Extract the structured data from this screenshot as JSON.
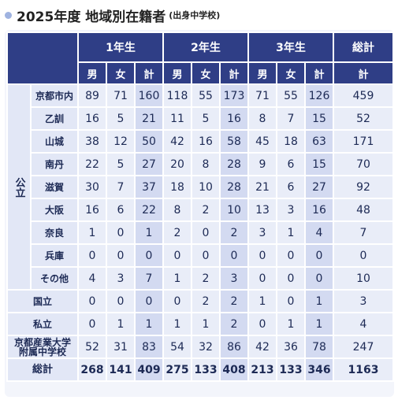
{
  "title": {
    "main": "2025年度 地域別在籍者",
    "sub": "(出身中学校)"
  },
  "table": {
    "header": {
      "years": [
        "1年生",
        "2年生",
        "3年生"
      ],
      "grand": "総計",
      "sub": [
        "男",
        "女",
        "計"
      ],
      "grand_sub": "計"
    },
    "public_group": {
      "label": "公立",
      "rows": [
        {
          "name": "京都市内",
          "values": [
            89,
            71,
            160,
            118,
            55,
            173,
            71,
            55,
            126,
            459
          ]
        },
        {
          "name": "乙訓",
          "values": [
            16,
            5,
            21,
            11,
            5,
            16,
            8,
            7,
            15,
            52
          ]
        },
        {
          "name": "山城",
          "values": [
            38,
            12,
            50,
            42,
            16,
            58,
            45,
            18,
            63,
            171
          ]
        },
        {
          "name": "南丹",
          "values": [
            22,
            5,
            27,
            20,
            8,
            28,
            9,
            6,
            15,
            70
          ]
        },
        {
          "name": "滋賀",
          "values": [
            30,
            7,
            37,
            18,
            10,
            28,
            21,
            6,
            27,
            92
          ]
        },
        {
          "name": "大阪",
          "values": [
            16,
            6,
            22,
            8,
            2,
            10,
            13,
            3,
            16,
            48
          ]
        },
        {
          "name": "奈良",
          "values": [
            1,
            0,
            1,
            2,
            0,
            2,
            3,
            1,
            4,
            7
          ]
        },
        {
          "name": "兵庫",
          "values": [
            0,
            0,
            0,
            0,
            0,
            0,
            0,
            0,
            0,
            0
          ]
        },
        {
          "name": "その他",
          "values": [
            4,
            3,
            7,
            1,
            2,
            3,
            0,
            0,
            0,
            10
          ]
        }
      ]
    },
    "other_rows": [
      {
        "name": "国立",
        "values": [
          0,
          0,
          0,
          0,
          2,
          2,
          1,
          0,
          1,
          3
        ]
      },
      {
        "name": "私立",
        "values": [
          0,
          1,
          1,
          1,
          1,
          2,
          0,
          1,
          1,
          4
        ]
      },
      {
        "name": "京都産業大学\n附属中学校",
        "values": [
          52,
          31,
          83,
          54,
          32,
          86,
          42,
          36,
          78,
          247
        ]
      },
      {
        "name": "総計",
        "values": [
          268,
          141,
          409,
          275,
          133,
          408,
          213,
          133,
          346,
          1163
        ]
      }
    ]
  }
}
